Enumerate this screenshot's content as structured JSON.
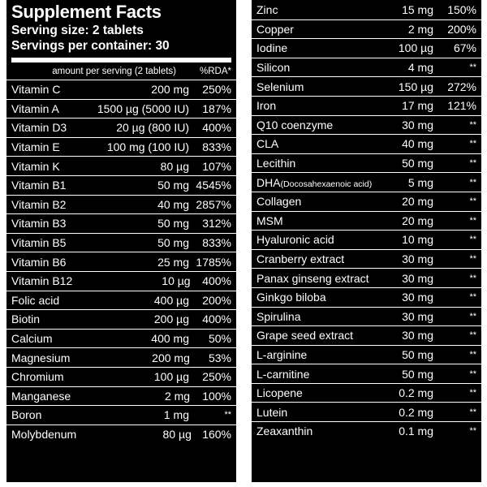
{
  "header": {
    "title": "Supplement Facts",
    "serving_size": "Serving size: 2 tablets",
    "servings_per_container": "Servings per container: 30"
  },
  "columns": {
    "amount": "amount per serving (2 tablets)",
    "rda": "%RDA*"
  },
  "left_rows": [
    {
      "name": "Vitamin C",
      "amount": "200 mg",
      "rda": "250%"
    },
    {
      "name": "Vitamin A",
      "amount": "1500 µg (5000 IU)",
      "rda": "187%"
    },
    {
      "name": "Vitamin D3",
      "amount": "20 µg (800 IU)",
      "rda": "400%"
    },
    {
      "name": "Vitamin E",
      "amount": "100 mg (100 IU)",
      "rda": "833%"
    },
    {
      "name": "Vitamin K",
      "amount": "80 µg",
      "rda": "107%"
    },
    {
      "name": "Vitamin B1",
      "amount": "50 mg",
      "rda": "4545%"
    },
    {
      "name": "Vitamin B2",
      "amount": "40 mg",
      "rda": "2857%"
    },
    {
      "name": "Vitamin B3",
      "amount": "50 mg",
      "rda": "312%"
    },
    {
      "name": "Vitamin B5",
      "amount": "50 mg",
      "rda": "833%"
    },
    {
      "name": "Vitamin B6",
      "amount": "25 mg",
      "rda": "1785%"
    },
    {
      "name": "Vitamin B12",
      "amount": "10 µg",
      "rda": "400%"
    },
    {
      "name": "Folic acid",
      "amount": "400 µg",
      "rda": "200%"
    },
    {
      "name": "Biotin",
      "amount": "200 µg",
      "rda": "400%"
    },
    {
      "name": "Calcium",
      "amount": "400 mg",
      "rda": "50%"
    },
    {
      "name": "Magnesium",
      "amount": "200 mg",
      "rda": "53%"
    },
    {
      "name": "Chromium",
      "amount": "100 µg",
      "rda": "250%"
    },
    {
      "name": "Manganese",
      "amount": "2 mg",
      "rda": "100%"
    },
    {
      "name": "Boron",
      "amount": "1 mg",
      "rda": "**"
    },
    {
      "name": "Molybdenum",
      "amount": "80 µg",
      "rda": "160%"
    }
  ],
  "right_rows": [
    {
      "name": "Zinc",
      "amount": "15 mg",
      "rda": "150%"
    },
    {
      "name": "Copper",
      "amount": "2 mg",
      "rda": "200%"
    },
    {
      "name": "Iodine",
      "amount": "100 µg",
      "rda": "67%"
    },
    {
      "name": "Silicon",
      "amount": "4 mg",
      "rda": "**"
    },
    {
      "name": "Selenium",
      "amount": "150 µg",
      "rda": "272%"
    },
    {
      "name": "Iron",
      "amount": "17 mg",
      "rda": "121%"
    },
    {
      "name": "Q10 coenzyme",
      "amount": "30 mg",
      "rda": "**"
    },
    {
      "name": "CLA",
      "amount": "40 mg",
      "rda": "**"
    },
    {
      "name": "Lecithin",
      "amount": "50 mg",
      "rda": "**"
    },
    {
      "name": "DHA",
      "name_note": "(Docosahexaenoic acid)",
      "amount": "5 mg",
      "rda": "**"
    },
    {
      "name": "Collagen",
      "amount": "20 mg",
      "rda": "**"
    },
    {
      "name": "MSM",
      "amount": "20 mg",
      "rda": "**"
    },
    {
      "name": "Hyaluronic acid",
      "amount": "10 mg",
      "rda": "**"
    },
    {
      "name": "Cranberry extract",
      "amount": "30 mg",
      "rda": "**"
    },
    {
      "name": "Panax ginseng extract",
      "amount": "30 mg",
      "rda": "**"
    },
    {
      "name": "Ginkgo biloba",
      "amount": "30 mg",
      "rda": "**"
    },
    {
      "name": "Spirulina",
      "amount": "30 mg",
      "rda": "**"
    },
    {
      "name": "Grape seed extract",
      "amount": "30 mg",
      "rda": "**"
    },
    {
      "name": "L-arginine",
      "amount": "50 mg",
      "rda": "**"
    },
    {
      "name": "L-carnitine",
      "amount": "50 mg",
      "rda": "**"
    },
    {
      "name": "Licopene",
      "amount": "0.2 mg",
      "rda": "**"
    },
    {
      "name": "Lutein",
      "amount": "0.2 mg",
      "rda": "**"
    },
    {
      "name": "Zeaxanthin",
      "amount": "0.1 mg",
      "rda": "**"
    }
  ]
}
